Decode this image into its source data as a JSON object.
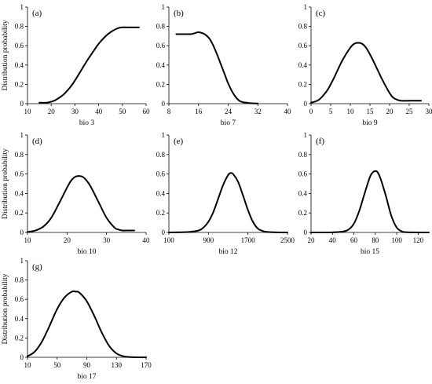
{
  "chart_data": [
    {
      "panel": "(a)",
      "type": "line",
      "xlabel": "bio 3",
      "ylabel": "Distribution probability",
      "xlim": [
        10,
        60
      ],
      "ylim": [
        0,
        1
      ],
      "xticks": [
        "10",
        "20",
        "30",
        "40",
        "50",
        "60"
      ],
      "yticks": [
        "0",
        "0.2",
        "0.4",
        "0.6",
        "0.8",
        "1"
      ],
      "series": [
        {
          "x": [
            15,
            18,
            20,
            22,
            25,
            28,
            30,
            33,
            35,
            38,
            40,
            43,
            45,
            48,
            50,
            52,
            54,
            56,
            57
          ],
          "y": [
            0.01,
            0.01,
            0.02,
            0.04,
            0.09,
            0.17,
            0.24,
            0.36,
            0.44,
            0.55,
            0.62,
            0.7,
            0.74,
            0.78,
            0.79,
            0.79,
            0.79,
            0.79,
            0.79
          ]
        }
      ]
    },
    {
      "panel": "(b)",
      "type": "line",
      "xlabel": "bio 7",
      "ylabel": "",
      "xlim": [
        8,
        40
      ],
      "ylim": [
        0,
        1
      ],
      "xticks": [
        "8",
        "16",
        "24",
        "32",
        "40"
      ],
      "yticks": [
        "0",
        "0.2",
        "0.4",
        "0.6",
        "0.8",
        "1"
      ],
      "series": [
        {
          "x": [
            10,
            12,
            14,
            15,
            16,
            17,
            18,
            19,
            20,
            21,
            22,
            23,
            24,
            25,
            26,
            27,
            28,
            29,
            30,
            31,
            32
          ],
          "y": [
            0.72,
            0.72,
            0.72,
            0.73,
            0.74,
            0.73,
            0.71,
            0.67,
            0.6,
            0.51,
            0.41,
            0.31,
            0.21,
            0.13,
            0.07,
            0.03,
            0.015,
            0.01,
            0.005,
            0.003,
            0.002
          ]
        }
      ]
    },
    {
      "panel": "(c)",
      "type": "line",
      "xlabel": "bio 9",
      "ylabel": "",
      "xlim": [
        0,
        30
      ],
      "ylim": [
        0,
        1
      ],
      "xticks": [
        "0",
        "5",
        "10",
        "15",
        "20",
        "25",
        "30"
      ],
      "yticks": [
        "0",
        "0.2",
        "0.4",
        "0.6",
        "0.8",
        "1"
      ],
      "series": [
        {
          "x": [
            0,
            2,
            4,
            5,
            6,
            8,
            10,
            11,
            12,
            13,
            14,
            15,
            16,
            18,
            20,
            21,
            22,
            23,
            25,
            28
          ],
          "y": [
            0.01,
            0.04,
            0.13,
            0.2,
            0.28,
            0.45,
            0.58,
            0.62,
            0.63,
            0.62,
            0.58,
            0.51,
            0.43,
            0.26,
            0.11,
            0.06,
            0.04,
            0.03,
            0.03,
            0.03
          ]
        }
      ]
    },
    {
      "panel": "(d)",
      "type": "line",
      "xlabel": "bio 10",
      "ylabel": "Distribution probability",
      "xlim": [
        10,
        40
      ],
      "ylim": [
        0,
        1
      ],
      "xticks": [
        "10",
        "20",
        "30",
        "40"
      ],
      "yticks": [
        "0",
        "0.2",
        "0.4",
        "0.6",
        "0.8",
        "1"
      ],
      "series": [
        {
          "x": [
            10,
            12,
            14,
            16,
            18,
            20,
            21,
            22,
            23,
            24,
            25,
            26,
            28,
            30,
            32,
            33,
            34,
            35,
            37
          ],
          "y": [
            0.005,
            0.02,
            0.06,
            0.15,
            0.3,
            0.46,
            0.53,
            0.57,
            0.58,
            0.57,
            0.53,
            0.47,
            0.31,
            0.15,
            0.05,
            0.03,
            0.02,
            0.02,
            0.02
          ]
        }
      ]
    },
    {
      "panel": "(e)",
      "type": "line",
      "xlabel": "bio 12",
      "ylabel": "",
      "xlim": [
        100,
        2500
      ],
      "ylim": [
        0,
        1
      ],
      "xticks": [
        "100",
        "900",
        "1700",
        "2500"
      ],
      "yticks": [
        "0",
        "0.2",
        "0.4",
        "0.6",
        "0.8",
        "1"
      ],
      "series": [
        {
          "x": [
            100,
            500,
            700,
            800,
            900,
            1000,
            1100,
            1200,
            1300,
            1350,
            1400,
            1500,
            1600,
            1700,
            1800,
            1900,
            2000,
            2100,
            2300,
            2500
          ],
          "y": [
            0,
            0.005,
            0.02,
            0.05,
            0.11,
            0.21,
            0.35,
            0.49,
            0.59,
            0.61,
            0.6,
            0.52,
            0.38,
            0.23,
            0.11,
            0.04,
            0.015,
            0.005,
            0.001,
            0
          ]
        }
      ]
    },
    {
      "panel": "(f)",
      "type": "line",
      "xlabel": "bio 15",
      "ylabel": "",
      "xlim": [
        20,
        130
      ],
      "ylim": [
        0,
        1
      ],
      "xticks": [
        "20",
        "40",
        "60",
        "80",
        "100",
        "120"
      ],
      "yticks": [
        "0",
        "0.2",
        "0.4",
        "0.6",
        "0.8",
        "1"
      ],
      "series": [
        {
          "x": [
            20,
            40,
            50,
            55,
            60,
            65,
            70,
            75,
            78,
            80,
            82,
            85,
            90,
            95,
            100,
            105,
            110,
            130
          ],
          "y": [
            0,
            0.001,
            0.01,
            0.03,
            0.09,
            0.22,
            0.4,
            0.57,
            0.62,
            0.63,
            0.62,
            0.55,
            0.37,
            0.17,
            0.05,
            0.01,
            0.002,
            0
          ]
        }
      ]
    },
    {
      "panel": "(g)",
      "type": "line",
      "xlabel": "bio 17",
      "ylabel": "Distribution probability",
      "xlim": [
        10,
        170
      ],
      "ylim": [
        0,
        1
      ],
      "xticks": [
        "10",
        "50",
        "90",
        "130",
        "170"
      ],
      "yticks": [
        "0",
        "0.2",
        "0.4",
        "0.6",
        "0.8",
        "1"
      ],
      "series": [
        {
          "x": [
            10,
            20,
            30,
            40,
            50,
            60,
            70,
            75,
            80,
            90,
            100,
            110,
            120,
            130,
            140,
            150,
            170
          ],
          "y": [
            0.01,
            0.06,
            0.17,
            0.33,
            0.5,
            0.62,
            0.68,
            0.68,
            0.67,
            0.58,
            0.43,
            0.26,
            0.12,
            0.04,
            0.01,
            0.002,
            0
          ]
        }
      ]
    }
  ]
}
